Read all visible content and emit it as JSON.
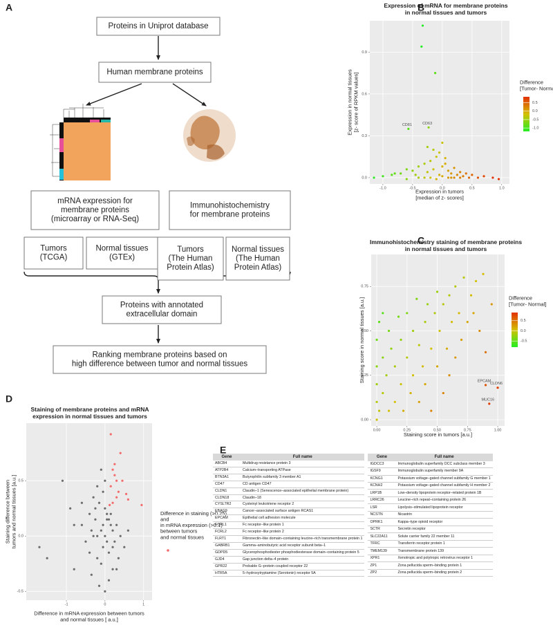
{
  "panel_labels": [
    "A",
    "B",
    "C",
    "D",
    "E"
  ],
  "flowchart": {
    "nodes": [
      "Proteins in Uniprot database",
      "Human membrane proteins",
      "mRNA expression for\nmembrane proteins\n(microarray or RNA-Seq)",
      "Immunohistochemistry\nfor membrane proteins",
      "Tumors\n(TCGA)",
      "Normal tissues\n(GTEx)",
      "Tumors\n(The Human\nProtein Atlas)",
      "Normal tissues\n(The Human\nProtein Atlas)",
      "Proteins with annotated\nextracellular domain",
      "Ranking membrane proteins based on\nhigh difference between tumor and normal tissues"
    ]
  },
  "chart_data": [
    {
      "type": "scatter",
      "title": "Expression of mRNA for membrane proteins\nin normal tissues and tumors",
      "xlabel": "Expression in tumors\n[median of z- scores]",
      "ylabel": "Expression in normal tissues\n[z- score of RPKM values]",
      "xlim": [
        -1.22,
        1.13
      ],
      "ylim": [
        -0.045,
        1.125
      ],
      "xticks": [
        {
          "value": -1,
          "label": "-1.0"
        },
        -0.5,
        {
          "value": 0,
          "label": "0.0"
        },
        0.5,
        {
          "value": 1,
          "label": "1.0"
        }
      ],
      "yticks": [
        {
          "value": 0,
          "label": "0.0"
        },
        0.3,
        0.6,
        0.9
      ],
      "grid": true,
      "colorbar": {
        "title": "Difference\n[Tumor- Normal]",
        "lim": [
          -1.2,
          0.85
        ],
        "colors": [
          "#22ee22",
          "#d4c000",
          "#e23000"
        ],
        "ticks": [
          0.5,
          {
            "value": 0,
            "label": "0.0"
          },
          -0.5,
          {
            "value": -1,
            "label": "-1.0"
          }
        ]
      },
      "series": [
        {
          "x": [
            -0.33,
            -0.35,
            -0.12,
            -0.57,
            -0.23,
            -1.15,
            -1.0,
            -0.85,
            -0.7,
            -0.6,
            -0.5,
            -0.45,
            -0.4,
            -0.3,
            -0.25,
            -0.2,
            -0.15,
            -0.1,
            -0.05,
            0,
            0.05,
            0.1,
            0.15,
            0.2,
            0.25,
            0.3,
            0.35,
            0.4,
            0.5,
            0.6,
            0.7,
            0.85,
            0.95,
            -0.3,
            -0.2,
            -0.1,
            0,
            0.1,
            0.2,
            -0.15,
            -0.05,
            0.05,
            -0.4,
            0.3,
            0.45,
            -0.6,
            -0.8,
            0.15,
            -0.25,
            0.0
          ],
          "values": [
            1.09,
            0.94,
            0.75,
            0.35,
            0.36,
            0,
            0.01,
            0.02,
            0.03,
            -0.01,
            0.05,
            0.02,
            0.08,
            0.1,
            0.04,
            0.12,
            0.06,
            0.15,
            0.02,
            0.08,
            0.1,
            0.05,
            0.03,
            0.07,
            0.02,
            0.04,
            0.01,
            0.03,
            0.02,
            0.0,
            0.01,
            0.0,
            -0.01,
            0.0,
            0.0,
            -0.01,
            0.01,
            0.0,
            0.0,
            0.2,
            0.18,
            0.14,
            0.0,
            0.0,
            0.0,
            0.06,
            0.03,
            0.0,
            0.22,
            0.25
          ],
          "labels": [
            null,
            null,
            null,
            "CD81",
            "CD63",
            null,
            null,
            null,
            null,
            null,
            null,
            null,
            null,
            null,
            null,
            null,
            null,
            null,
            null,
            null,
            null,
            null,
            null,
            null,
            null,
            null,
            null,
            null,
            null,
            null,
            null,
            null,
            null,
            null,
            null,
            null,
            null,
            null,
            null,
            null,
            null,
            null,
            null,
            null,
            null,
            null,
            null,
            null,
            null,
            null
          ]
        }
      ]
    },
    {
      "type": "scatter",
      "title": "Immunohistochemistry staining of membrane proteins\nin normal tissues and tumors",
      "xlabel": "Staining score in tumors [a.u.]",
      "ylabel": "Staining score in normal tissues [a.u.]",
      "xlim": [
        -0.046,
        1.057
      ],
      "ylim": [
        -0.035,
        0.93
      ],
      "xticks": [
        {
          "value": 0,
          "label": "0.00"
        },
        0.25,
        {
          "value": 0.5,
          "label": "0.50"
        },
        0.75,
        {
          "value": 1,
          "label": "1.00"
        }
      ],
      "yticks": [
        {
          "value": 0,
          "label": "0.00"
        },
        0.25,
        {
          "value": 0.5,
          "label": "0.50"
        },
        0.75
      ],
      "grid": true,
      "colorbar": {
        "title": "Difference\n[Tumor- Normal]",
        "lim": [
          -0.8,
          0.9
        ],
        "colors": [
          "#22ee22",
          "#d4c000",
          "#e23000"
        ],
        "ticks": [
          0.5,
          {
            "value": 0,
            "label": "0.0"
          },
          -0.5
        ]
      },
      "series": [
        {
          "x": [
            0,
            0,
            0,
            0,
            0,
            0.02,
            0.02,
            0.05,
            0.05,
            0.05,
            0.08,
            0.1,
            0.1,
            0.12,
            0.15,
            0.15,
            0.18,
            0.2,
            0.2,
            0.22,
            0.25,
            0.25,
            0.28,
            0.3,
            0.3,
            0.33,
            0.35,
            0.35,
            0.38,
            0.4,
            0.4,
            0.42,
            0.45,
            0.45,
            0.48,
            0.5,
            0.5,
            0.52,
            0.55,
            0.55,
            0.58,
            0.6,
            0.6,
            0.62,
            0.65,
            0.65,
            0.68,
            0.7,
            0.72,
            0.75,
            0.78,
            0.8,
            0.82,
            0.85,
            0.88,
            0.9,
            0.95,
            0.9,
            1.0,
            0.93
          ],
          "values": [
            0,
            0.1,
            0.2,
            0.3,
            0.45,
            0.05,
            0.55,
            0.15,
            0.35,
            0.6,
            0.25,
            0.05,
            0.5,
            0.4,
            0.1,
            0.3,
            0.58,
            0.2,
            0.45,
            0.05,
            0.35,
            0.6,
            0.15,
            0.25,
            0.5,
            0.68,
            0.1,
            0.42,
            0.3,
            0.55,
            0.2,
            0.65,
            0.05,
            0.4,
            0.6,
            0.3,
            0.72,
            0.5,
            0.15,
            0.65,
            0.4,
            0.25,
            0.7,
            0.55,
            0.35,
            0.75,
            0.6,
            0.45,
            0.8,
            0.55,
            0.7,
            0.6,
            0.78,
            0.5,
            0.82,
            0.195,
            0.65,
            0.38,
            0.18,
            0.09
          ],
          "labels": [
            null,
            null,
            null,
            null,
            null,
            null,
            null,
            null,
            null,
            null,
            null,
            null,
            null,
            null,
            null,
            null,
            null,
            null,
            null,
            null,
            null,
            null,
            null,
            null,
            null,
            null,
            null,
            null,
            null,
            null,
            null,
            null,
            null,
            null,
            null,
            null,
            null,
            null,
            null,
            null,
            null,
            null,
            null,
            null,
            null,
            null,
            null,
            null,
            null,
            null,
            null,
            null,
            null,
            null,
            null,
            "EPCAM",
            null,
            null,
            "CLDN6",
            "MUC16"
          ]
        }
      ]
    },
    {
      "type": "scatter",
      "title": "Staining of membrane proteins and mRNA\nexpression in normal tissues and tumors",
      "xlabel": "Difference in mRNA expression between tumors\nand normal tissues [ a.u.]",
      "ylabel": "Staining difference between\ntumors and normal tissues [a.u.]",
      "xlim": [
        -2.04,
        1.22
      ],
      "ylim": [
        -0.58,
        1.02
      ],
      "xticks": [
        -1,
        0,
        1
      ],
      "yticks": [
        -0.5,
        {
          "value": 0,
          "label": "0.0"
        },
        0.5
      ],
      "grid": true,
      "series": [
        {
          "color": "#6b6b6b",
          "x": [
            -1.7,
            -1.5,
            -1.1,
            -0.9,
            -0.8,
            -0.6,
            -0.5,
            -0.4,
            -0.35,
            -0.3,
            -0.25,
            -0.2,
            -0.15,
            -0.1,
            -0.05,
            0,
            0.05,
            0.1,
            0.15,
            0.2,
            0.25,
            0.3,
            0.35,
            0.4,
            0.5,
            0.6,
            -0.3,
            -0.2,
            -0.1,
            0,
            0.1,
            0.2,
            -0.15,
            -0.05,
            0.05,
            -0.4,
            0.3,
            -0.6,
            -0.8,
            -0.1,
            0.0,
            0.1,
            -0.2,
            0.2,
            -0.05,
            0.05,
            -0.25,
            0.15,
            -0.35,
            0.0
          ],
          "values": [
            -0.1,
            -0.2,
            0.5,
            0.25,
            -0.3,
            0.1,
            -0.05,
            0.2,
            -0.35,
            0.0,
            0.15,
            -0.2,
            0.3,
            0.05,
            -0.1,
            0.0,
            0.2,
            -0.15,
            0.1,
            0.05,
            -0.05,
            0.1,
            -0.2,
            0.0,
            -0.1,
            0.05,
            0.35,
            0.45,
            0.6,
            0.25,
            -0.4,
            -0.3,
            -0.45,
            0.4,
            0.15,
            -0.15,
            -0.3,
            0.3,
            0.1,
            -0.25,
            0.5,
            0.15,
            0.0,
            -0.1,
            0.1,
            -0.05,
            0.25,
            0.2,
            0.05,
            -0.5
          ]
        },
        {
          "name": "Difference in staining (>0.25)\nand\nin mRNA expression (>0.1)\nbetween tumors\nand normal tissues",
          "color": "#f36b6b",
          "x": [
            0.15,
            0.2,
            0.25,
            0.3,
            0.15,
            0.35,
            0.2,
            0.4,
            0.3,
            0.25,
            0.55,
            0.6,
            0.12,
            0.45,
            0.95
          ],
          "values": [
            0.92,
            0.6,
            0.65,
            0.5,
            0.45,
            0.4,
            0.3,
            0.75,
            0.35,
            0.55,
            0.38,
            0.33,
            0.28,
            0.5,
            0.28
          ]
        }
      ]
    }
  ],
  "tables": [
    {
      "header": [
        "Gene",
        "Full name"
      ],
      "rows": [
        [
          "ABCB4",
          "Multidrug resistance protein 3"
        ],
        [
          "ATP2B4",
          "Calcium–transporting ATPase"
        ],
        [
          "BTN3A1",
          "Butyrophilin subfamily 3 member A1"
        ],
        [
          "CD47",
          "CD antigen CD47"
        ],
        [
          "CLDN1",
          "Claudin–1 (Senescence–associated epithelial membrane protein)"
        ],
        [
          "CLDN18",
          "Claudin–18"
        ],
        [
          "CYSLTR2",
          "Cysteinyl leukotriene receptor 2"
        ],
        [
          "EBAG9",
          "Cancer–associated surface antigen RCAS1"
        ],
        [
          "EPCAM",
          "Epithelial cell adhesion molecule"
        ],
        [
          "FCRL1",
          "Fc receptor–like protein 1"
        ],
        [
          "FCRL2",
          "Fc receptor–like protein 2"
        ],
        [
          "FLRT1",
          "Fibronectin–like domain–containing leucine–rich transmembrane protein 1"
        ],
        [
          "GABRB1",
          "Gamma–aminobutyric acid receptor subunit beta–1"
        ],
        [
          "GDPD5",
          "Glycerophosphodiester phosphodiesterase domain–containing protein 5"
        ],
        [
          "GJD4",
          "Gap junction delta–4 protein"
        ],
        [
          "GPR22",
          "Probable G–protein coupled receptor 22"
        ],
        [
          "HTR5A",
          "5–hydroxytryptamine (Serotonin) receptor 5A"
        ]
      ]
    },
    {
      "header": [
        "Gene",
        "Full name"
      ],
      "rows": [
        [
          "IGDCC3",
          "Immunoglobulin superfamily DCC subclass member 3"
        ],
        [
          "IGSF9",
          "Immunoglobulin superfamily member 9A"
        ],
        [
          "KCNG1",
          "Potassium voltage–gated channel subfamily G member 1"
        ],
        [
          "KCNH2",
          "Potassium voltage–gated channel subfamily H member 2"
        ],
        [
          "LRP1B",
          "Low–density lipoprotein receptor–related protein 1B"
        ],
        [
          "LRRC26",
          "Leucine–rich repeat–containing protein 26"
        ],
        [
          "LSR",
          "Lipolysis–stimulated lipoprotein receptor"
        ],
        [
          "NCSTN",
          "Nicastrin"
        ],
        [
          "OPRK1",
          "Kappa–type opioid receptor"
        ],
        [
          "SCTR",
          "Secretin receptor"
        ],
        [
          "SLC22A11",
          "Solute carrier family 22 member 11"
        ],
        [
          "TFRC",
          "Transferrin receptor protein 1"
        ],
        [
          "TMEM139",
          "Transmembrane protein 139"
        ],
        [
          "XPR1",
          "Xenotropic and polytropic retrovirus receptor 1"
        ],
        [
          "ZP1",
          "Zona pellucida sperm–binding protein 1"
        ],
        [
          "ZP2",
          "Zona pellucida sperm–binding protein 2"
        ]
      ]
    }
  ]
}
